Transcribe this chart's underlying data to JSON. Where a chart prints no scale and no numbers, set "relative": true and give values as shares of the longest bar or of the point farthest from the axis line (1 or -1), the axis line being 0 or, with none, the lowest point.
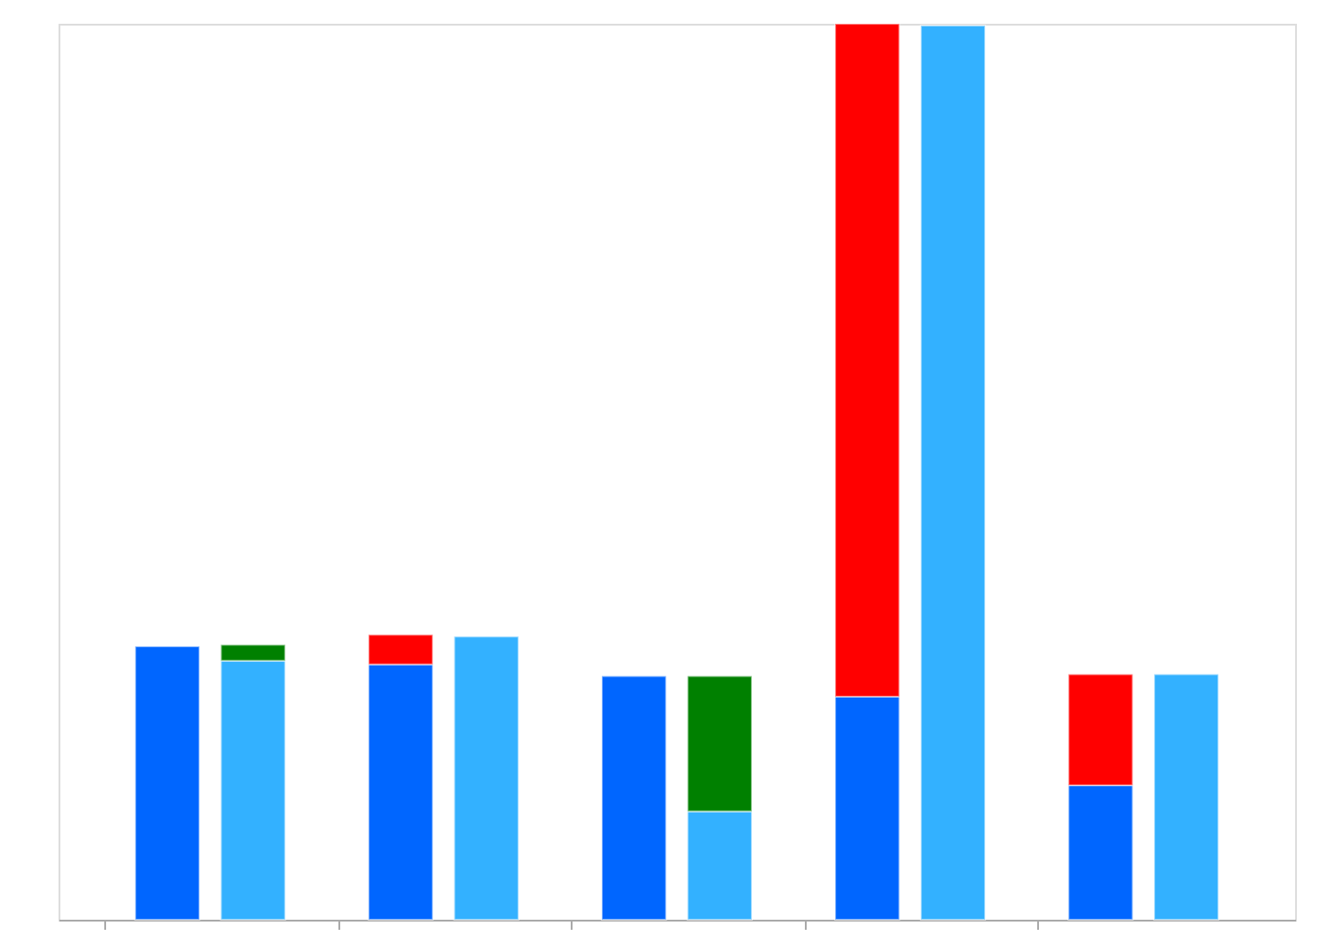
{
  "chart_data": {
    "type": "bar",
    "relative": true,
    "stacked": true,
    "categories": [
      null,
      null,
      null,
      null,
      null,
      null,
      null,
      null,
      null,
      null
    ],
    "series": [
      {
        "colors": [
          "#0066ff",
          "#33b1ff",
          "#0066ff",
          "#33b1ff",
          "#0066ff",
          "#33b1ff",
          "#0066ff",
          "#33b1ff",
          "#0066ff",
          "#33b1ff"
        ],
        "values": [
          0.305,
          0.289,
          0.285,
          0.316,
          0.272,
          0.121,
          0.249,
          0.998,
          0.15,
          0.274
        ]
      },
      {
        "colors": [
          "#ff0000",
          "#008000",
          "#ff0000",
          "#008000",
          "#ff0000",
          "#008000",
          "#ff0000",
          "#008000",
          "#ff0000",
          "#008000"
        ],
        "values": [
          null,
          0.018,
          0.033,
          null,
          null,
          0.151,
          0.751,
          null,
          0.124,
          null
        ]
      }
    ],
    "grid": false,
    "tick_labels": false
  }
}
